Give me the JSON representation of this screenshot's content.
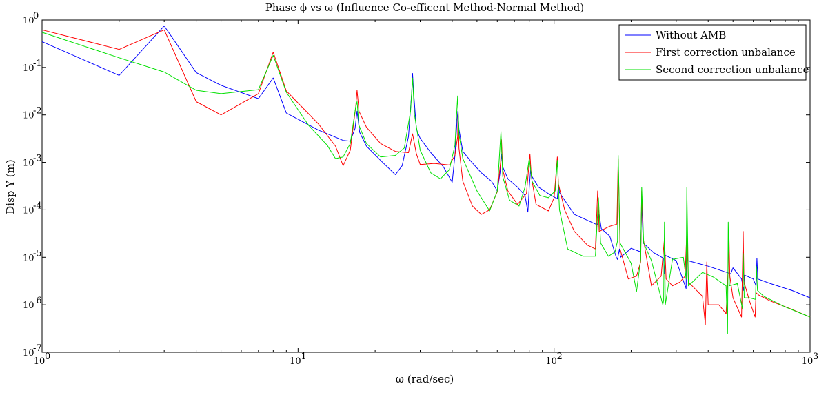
{
  "chart_data": {
    "type": "line",
    "title": "Phase ϕ vs ω (Influence Co-efficent Method-Normal Method)",
    "xlabel": "ω (rad/sec)",
    "ylabel": "Disp Y (m)",
    "xscale": "log",
    "yscale": "log",
    "xlim": [
      1,
      1000
    ],
    "ylim": [
      1e-07,
      1
    ],
    "grid": false,
    "legend_position": "top-right",
    "x_ticks": [
      {
        "value": 1,
        "base": "10",
        "exp": "0"
      },
      {
        "value": 10,
        "base": "10",
        "exp": "1"
      },
      {
        "value": 100,
        "base": "10",
        "exp": "2"
      },
      {
        "value": 1000,
        "base": "10",
        "exp": "3"
      }
    ],
    "y_ticks": [
      {
        "value": 1,
        "base": "10",
        "exp": "0"
      },
      {
        "value": 0.1,
        "base": "10",
        "exp": "-1"
      },
      {
        "value": 0.01,
        "base": "10",
        "exp": "-2"
      },
      {
        "value": 0.001,
        "base": "10",
        "exp": "-3"
      },
      {
        "value": 0.0001,
        "base": "10",
        "exp": "-4"
      },
      {
        "value": 1e-05,
        "base": "10",
        "exp": "-5"
      },
      {
        "value": 1e-06,
        "base": "10",
        "exp": "-6"
      },
      {
        "value": 1e-07,
        "base": "10",
        "exp": "-7"
      }
    ],
    "series": [
      {
        "name": "Without AMB",
        "color": "#0000ff",
        "points": [
          [
            1,
            0.35
          ],
          [
            2,
            0.068
          ],
          [
            3,
            0.75
          ],
          [
            4,
            0.078
          ],
          [
            5,
            0.042
          ],
          [
            7,
            0.022
          ],
          [
            8,
            0.06
          ],
          [
            9,
            0.011
          ],
          [
            12,
            0.0048
          ],
          [
            15,
            0.0029
          ],
          [
            16,
            0.0028
          ],
          [
            16.7,
            0.0052
          ],
          [
            17,
            0.012
          ],
          [
            17.4,
            0.0043
          ],
          [
            18.5,
            0.0022
          ],
          [
            21,
            0.0011
          ],
          [
            24,
            0.00055
          ],
          [
            25.5,
            0.00085
          ],
          [
            27,
            0.0035
          ],
          [
            27.8,
            0.03
          ],
          [
            28,
            0.075
          ],
          [
            28.3,
            0.028
          ],
          [
            29,
            0.005
          ],
          [
            30,
            0.0032
          ],
          [
            33,
            0.0016
          ],
          [
            37,
            0.0008
          ],
          [
            40,
            0.00038
          ],
          [
            41,
            0.0014
          ],
          [
            41.8,
            0.008
          ],
          [
            42.1,
            0.012
          ],
          [
            42.5,
            0.005
          ],
          [
            44,
            0.0017
          ],
          [
            47,
            0.0011
          ],
          [
            52,
            0.0006
          ],
          [
            57,
            0.0004
          ],
          [
            60,
            0.00025
          ],
          [
            61.5,
            0.0006
          ],
          [
            62.3,
            0.0015
          ],
          [
            63,
            0.0008
          ],
          [
            66,
            0.00045
          ],
          [
            72,
            0.0003
          ],
          [
            77,
            0.0002
          ],
          [
            79,
            9e-05
          ],
          [
            80,
            0.0003
          ],
          [
            81,
            0.0007
          ],
          [
            82,
            0.0005
          ],
          [
            87,
            0.0003
          ],
          [
            95,
            0.00022
          ],
          [
            103,
            0.00017
          ],
          [
            104,
            0.00035
          ],
          [
            105,
            0.00023
          ],
          [
            120,
            8e-05
          ],
          [
            140,
            5.5e-05
          ],
          [
            148,
            4.8e-05
          ],
          [
            150,
            8e-05
          ],
          [
            153,
            4e-05
          ],
          [
            165,
            2.8e-05
          ],
          [
            175,
            1e-05
          ],
          [
            177,
            9e-06
          ],
          [
            180,
            1.5e-05
          ],
          [
            182,
            1e-05
          ],
          [
            200,
            1.55e-05
          ],
          [
            218,
            1.3e-05
          ],
          [
            220,
            0.00015
          ],
          [
            223,
            2e-05
          ],
          [
            245,
            1.25e-05
          ],
          [
            268,
            9.5e-06
          ],
          [
            270,
            4.5e-06
          ],
          [
            272,
            1.1e-05
          ],
          [
            300,
            8.5e-06
          ],
          [
            328,
            2.2e-06
          ],
          [
            330,
            4.2e-05
          ],
          [
            333,
            8.5e-06
          ],
          [
            400,
            6.5e-06
          ],
          [
            490,
            4.5e-06
          ],
          [
            500,
            6e-06
          ],
          [
            540,
            3.5e-06
          ],
          [
            550,
            2e-06
          ],
          [
            555,
            4.2e-06
          ],
          [
            600,
            3.5e-06
          ],
          [
            615,
            2.5e-06
          ],
          [
            620,
            9.5e-06
          ],
          [
            625,
            3.5e-06
          ],
          [
            700,
            2.8e-06
          ],
          [
            850,
            2e-06
          ],
          [
            1000,
            1.4e-06
          ]
        ]
      },
      {
        "name": "First correction unbalance",
        "color": "#ff0000",
        "points": [
          [
            1,
            0.62
          ],
          [
            2,
            0.24
          ],
          [
            3,
            0.62
          ],
          [
            4,
            0.019
          ],
          [
            5,
            0.01
          ],
          [
            7,
            0.028
          ],
          [
            8,
            0.21
          ],
          [
            9,
            0.032
          ],
          [
            12,
            0.0065
          ],
          [
            14,
            0.0022
          ],
          [
            15,
            0.00085
          ],
          [
            16,
            0.0018
          ],
          [
            16.8,
            0.015
          ],
          [
            17,
            0.033
          ],
          [
            17.3,
            0.012
          ],
          [
            18.5,
            0.0055
          ],
          [
            21,
            0.0025
          ],
          [
            24,
            0.0017
          ],
          [
            27,
            0.0016
          ],
          [
            28,
            0.004
          ],
          [
            29,
            0.0015
          ],
          [
            30,
            0.0009
          ],
          [
            34,
            0.00095
          ],
          [
            39,
            0.00088
          ],
          [
            41,
            0.0014
          ],
          [
            42,
            0.0035
          ],
          [
            42.2,
            0.012
          ],
          [
            42.5,
            0.002
          ],
          [
            44,
            0.0004
          ],
          [
            48,
            0.00012
          ],
          [
            52,
            8e-05
          ],
          [
            56,
            0.0001
          ],
          [
            60,
            0.00024
          ],
          [
            61.8,
            0.001
          ],
          [
            62.3,
            0.003
          ],
          [
            63,
            0.0007
          ],
          [
            66,
            0.00025
          ],
          [
            72,
            0.00013
          ],
          [
            78,
            0.00022
          ],
          [
            80.5,
            0.0015
          ],
          [
            81.5,
            0.0005
          ],
          [
            85,
            0.00013
          ],
          [
            95,
            9.5e-05
          ],
          [
            100,
            0.00018
          ],
          [
            103,
            0.0013
          ],
          [
            104,
            0.00035
          ],
          [
            110,
            0.0001
          ],
          [
            120,
            3.5e-05
          ],
          [
            135,
            1.8e-05
          ],
          [
            145,
            1.5e-05
          ],
          [
            148,
            0.00025
          ],
          [
            150,
            3.5e-05
          ],
          [
            165,
            4.5e-05
          ],
          [
            176,
            5e-05
          ],
          [
            178,
            0.0012
          ],
          [
            181,
            1.5e-05
          ],
          [
            195,
            3.5e-06
          ],
          [
            210,
            4e-06
          ],
          [
            218,
            8e-06
          ],
          [
            220,
            0.00025
          ],
          [
            223,
            2.5e-05
          ],
          [
            240,
            2.5e-06
          ],
          [
            262,
            4e-06
          ],
          [
            270,
            2.5e-05
          ],
          [
            274,
            3.5e-06
          ],
          [
            290,
            2.5e-06
          ],
          [
            310,
            3e-06
          ],
          [
            325,
            4e-06
          ],
          [
            330,
            3.5e-05
          ],
          [
            335,
            3e-06
          ],
          [
            380,
            1.5e-06
          ],
          [
            390,
            3.8e-07
          ],
          [
            395,
            8e-06
          ],
          [
            400,
            1e-06
          ],
          [
            440,
            1e-06
          ],
          [
            470,
            6.5e-07
          ],
          [
            478,
            5e-06
          ],
          [
            482,
            3.5e-05
          ],
          [
            486,
            4e-06
          ],
          [
            500,
            1.4e-06
          ],
          [
            540,
            5.5e-07
          ],
          [
            548,
            3.5e-05
          ],
          [
            552,
            3e-06
          ],
          [
            580,
            1.2e-06
          ],
          [
            610,
            5.5e-07
          ],
          [
            615,
            1.8e-06
          ],
          [
            630,
            1.6e-06
          ],
          [
            700,
            1.2e-06
          ],
          [
            850,
            8e-07
          ],
          [
            1000,
            5.5e-07
          ]
        ]
      },
      {
        "name": "Second correction unbalance",
        "color": "#00e000",
        "points": [
          [
            1,
            0.55
          ],
          [
            2,
            0.16
          ],
          [
            3,
            0.08
          ],
          [
            4,
            0.033
          ],
          [
            5,
            0.028
          ],
          [
            7,
            0.034
          ],
          [
            8,
            0.18
          ],
          [
            9,
            0.03
          ],
          [
            11,
            0.006
          ],
          [
            13,
            0.0023
          ],
          [
            14,
            0.0012
          ],
          [
            15,
            0.0013
          ],
          [
            16,
            0.0025
          ],
          [
            16.8,
            0.015
          ],
          [
            17,
            0.019
          ],
          [
            17.3,
            0.006
          ],
          [
            18.5,
            0.0025
          ],
          [
            21,
            0.0013
          ],
          [
            24,
            0.0014
          ],
          [
            26,
            0.002
          ],
          [
            27.5,
            0.012
          ],
          [
            28,
            0.06
          ],
          [
            28.5,
            0.01
          ],
          [
            30,
            0.0018
          ],
          [
            33,
            0.0006
          ],
          [
            36,
            0.00045
          ],
          [
            39,
            0.0007
          ],
          [
            41,
            0.0023
          ],
          [
            42,
            0.025
          ],
          [
            42.5,
            0.004
          ],
          [
            44,
            0.0012
          ],
          [
            50,
            0.00025
          ],
          [
            56,
            9.5e-05
          ],
          [
            60,
            0.00025
          ],
          [
            62,
            0.0045
          ],
          [
            63,
            0.0005
          ],
          [
            67,
            0.00016
          ],
          [
            73,
            0.00012
          ],
          [
            77,
            0.0003
          ],
          [
            80,
            0.0012
          ],
          [
            82,
            0.0004
          ],
          [
            88,
            0.0002
          ],
          [
            95,
            0.00018
          ],
          [
            101,
            0.00025
          ],
          [
            103,
            0.0011
          ],
          [
            105,
            0.0001
          ],
          [
            113,
            1.5e-05
          ],
          [
            130,
            1.05e-05
          ],
          [
            145,
            1.05e-05
          ],
          [
            149,
            0.00018
          ],
          [
            152,
            2e-05
          ],
          [
            163,
            1.05e-05
          ],
          [
            173,
            1.3e-05
          ],
          [
            177,
            2.2e-05
          ],
          [
            178,
            0.0014
          ],
          [
            181,
            2e-05
          ],
          [
            200,
            7.5e-06
          ],
          [
            210,
            1.9e-06
          ],
          [
            218,
            9e-06
          ],
          [
            220,
            0.0003
          ],
          [
            224,
            2e-05
          ],
          [
            240,
            8.5e-06
          ],
          [
            266,
            1e-06
          ],
          [
            268,
            1.25e-06
          ],
          [
            270,
            5.5e-05
          ],
          [
            272,
            1e-06
          ],
          [
            290,
            9e-06
          ],
          [
            320,
            1e-05
          ],
          [
            328,
            3.5e-06
          ],
          [
            330,
            0.0003
          ],
          [
            335,
            2.5e-06
          ],
          [
            380,
            4.8e-06
          ],
          [
            420,
            3.8e-06
          ],
          [
            470,
            2.5e-06
          ],
          [
            476,
            2.5e-07
          ],
          [
            479,
            5.5e-05
          ],
          [
            484,
            2.5e-06
          ],
          [
            520,
            2.8e-06
          ],
          [
            545,
            8e-07
          ],
          [
            548,
            1.2e-05
          ],
          [
            553,
            1.4e-06
          ],
          [
            580,
            1.4e-06
          ],
          [
            612,
            1.3e-06
          ],
          [
            617,
            6.5e-06
          ],
          [
            623,
            2e-06
          ],
          [
            660,
            1.5e-06
          ],
          [
            800,
            9e-07
          ],
          [
            1000,
            5.5e-07
          ]
        ]
      }
    ]
  }
}
